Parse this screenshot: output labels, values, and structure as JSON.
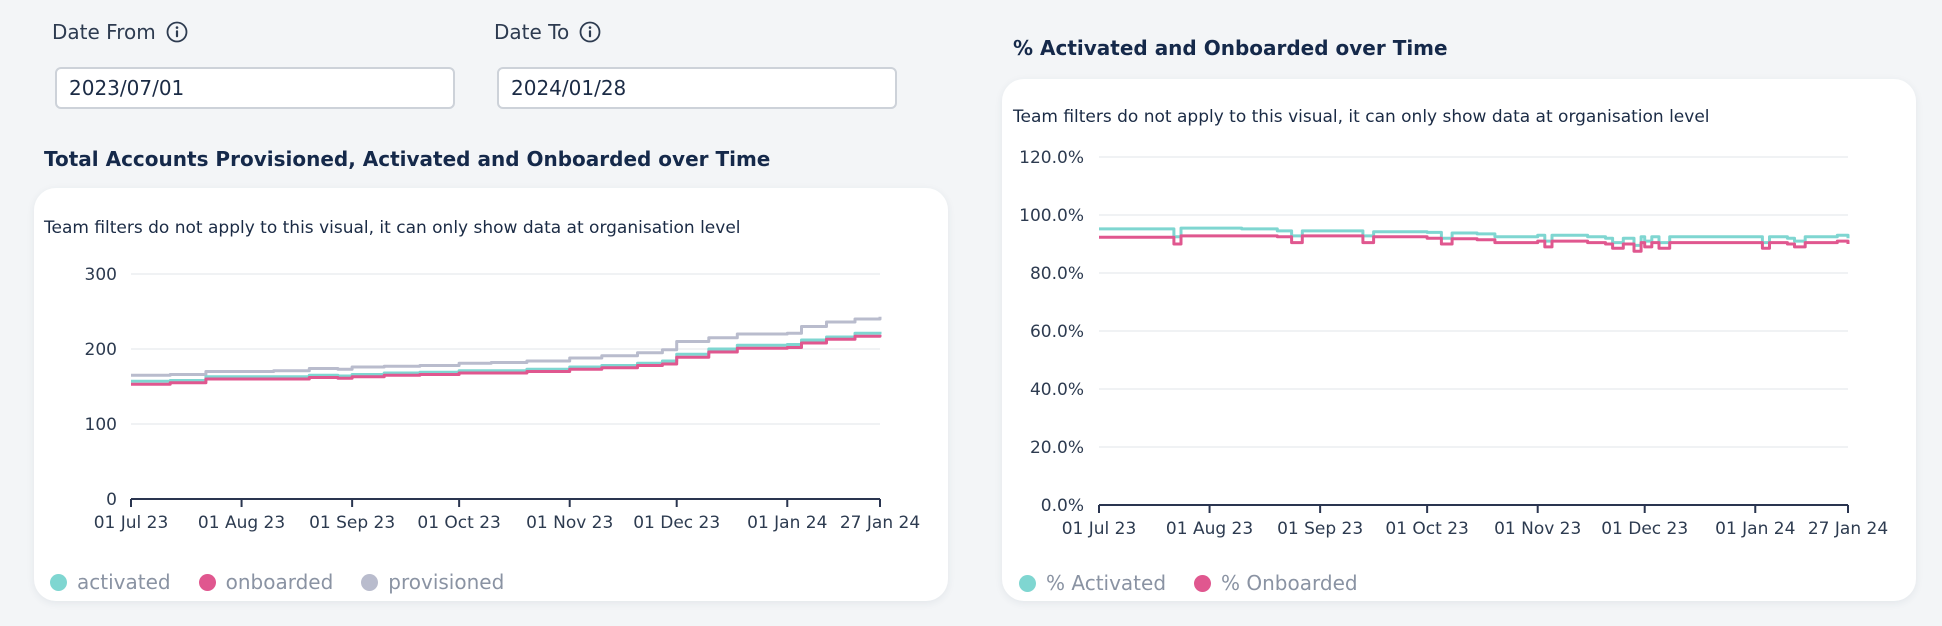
{
  "filters": {
    "date_from": {
      "label": "Date From",
      "value": "2023/07/01"
    },
    "date_to": {
      "label": "Date To",
      "value": "2024/01/28"
    }
  },
  "colors": {
    "activated": "#7fd6d1",
    "onboarded": "#e0578f",
    "provisioned": "#b9bccd",
    "axis": "#2a3550",
    "grid": "#e2e5ea"
  },
  "chart_data": [
    {
      "type": "line",
      "title": "Total Accounts Provisioned, Activated and Onboarded over Time",
      "note": "Team filters do not apply to this visual, it can only show data at organisation level",
      "x_domain": [
        "2023-07-01",
        "2024-01-27"
      ],
      "x_ticks": [
        {
          "date": "2023-07-01",
          "label": "01 Jul 23"
        },
        {
          "date": "2023-08-01",
          "label": "01 Aug 23"
        },
        {
          "date": "2023-09-01",
          "label": "01 Sep 23"
        },
        {
          "date": "2023-10-01",
          "label": "01 Oct 23"
        },
        {
          "date": "2023-11-01",
          "label": "01 Nov 23"
        },
        {
          "date": "2023-12-01",
          "label": "01 Dec 23"
        },
        {
          "date": "2024-01-01",
          "label": "01 Jan 24"
        },
        {
          "date": "2024-01-27",
          "label": "27 Jan 24"
        }
      ],
      "y_ticks": [
        {
          "v": 0,
          "label": "0"
        },
        {
          "v": 100,
          "label": "100"
        },
        {
          "v": 200,
          "label": "200"
        },
        {
          "v": 300,
          "label": "300"
        }
      ],
      "ylim": [
        0,
        300
      ],
      "grid": true,
      "legend": "bottom-left",
      "series": [
        {
          "name": "provisioned",
          "color": "#b9bccd",
          "points": [
            [
              "2023-07-01",
              165
            ],
            [
              "2023-07-12",
              166
            ],
            [
              "2023-07-22",
              170
            ],
            [
              "2023-08-10",
              171
            ],
            [
              "2023-08-20",
              174
            ],
            [
              "2023-08-28",
              173
            ],
            [
              "2023-09-01",
              176
            ],
            [
              "2023-09-10",
              177
            ],
            [
              "2023-09-20",
              178
            ],
            [
              "2023-10-01",
              181
            ],
            [
              "2023-10-10",
              182
            ],
            [
              "2023-10-20",
              184
            ],
            [
              "2023-11-01",
              188
            ],
            [
              "2023-11-10",
              191
            ],
            [
              "2023-11-20",
              195
            ],
            [
              "2023-11-27",
              199
            ],
            [
              "2023-12-01",
              210
            ],
            [
              "2023-12-10",
              215
            ],
            [
              "2023-12-18",
              220
            ],
            [
              "2024-01-01",
              221
            ],
            [
              "2024-01-05",
              230
            ],
            [
              "2024-01-12",
              236
            ],
            [
              "2024-01-20",
              240
            ],
            [
              "2024-01-27",
              243
            ]
          ]
        },
        {
          "name": "activated",
          "color": "#7fd6d1",
          "points": [
            [
              "2023-07-01",
              157
            ],
            [
              "2023-07-12",
              158
            ],
            [
              "2023-07-22",
              163
            ],
            [
              "2023-08-10",
              163
            ],
            [
              "2023-08-20",
              165
            ],
            [
              "2023-08-28",
              164
            ],
            [
              "2023-09-01",
              166
            ],
            [
              "2023-09-10",
              168
            ],
            [
              "2023-09-20",
              169
            ],
            [
              "2023-10-01",
              171
            ],
            [
              "2023-10-10",
              171
            ],
            [
              "2023-10-20",
              173
            ],
            [
              "2023-11-01",
              176
            ],
            [
              "2023-11-10",
              178
            ],
            [
              "2023-11-20",
              181
            ],
            [
              "2023-11-27",
              184
            ],
            [
              "2023-12-01",
              193
            ],
            [
              "2023-12-10",
              200
            ],
            [
              "2023-12-18",
              205
            ],
            [
              "2024-01-01",
              206
            ],
            [
              "2024-01-05",
              212
            ],
            [
              "2024-01-12",
              216
            ],
            [
              "2024-01-20",
              221
            ],
            [
              "2024-01-27",
              223
            ]
          ]
        },
        {
          "name": "onboarded",
          "color": "#e0578f",
          "points": [
            [
              "2023-07-01",
              153
            ],
            [
              "2023-07-12",
              155
            ],
            [
              "2023-07-22",
              160
            ],
            [
              "2023-08-10",
              160
            ],
            [
              "2023-08-20",
              162
            ],
            [
              "2023-08-28",
              161
            ],
            [
              "2023-09-01",
              163
            ],
            [
              "2023-09-10",
              165
            ],
            [
              "2023-09-20",
              166
            ],
            [
              "2023-10-01",
              168
            ],
            [
              "2023-10-10",
              168
            ],
            [
              "2023-10-20",
              170
            ],
            [
              "2023-11-01",
              173
            ],
            [
              "2023-11-10",
              175
            ],
            [
              "2023-11-20",
              178
            ],
            [
              "2023-11-27",
              180
            ],
            [
              "2023-12-01",
              189
            ],
            [
              "2023-12-10",
              196
            ],
            [
              "2023-12-18",
              201
            ],
            [
              "2024-01-01",
              202
            ],
            [
              "2024-01-05",
              208
            ],
            [
              "2024-01-12",
              213
            ],
            [
              "2024-01-20",
              217
            ],
            [
              "2024-01-27",
              219
            ]
          ]
        }
      ]
    },
    {
      "type": "line",
      "title": "% Activated and Onboarded over Time",
      "note": "Team filters do not apply to this visual, it can only show data at organisation level",
      "x_domain": [
        "2023-07-01",
        "2024-01-27"
      ],
      "x_ticks": [
        {
          "date": "2023-07-01",
          "label": "01 Jul 23"
        },
        {
          "date": "2023-08-01",
          "label": "01 Aug 23"
        },
        {
          "date": "2023-09-01",
          "label": "01 Sep 23"
        },
        {
          "date": "2023-10-01",
          "label": "01 Oct 23"
        },
        {
          "date": "2023-11-01",
          "label": "01 Nov 23"
        },
        {
          "date": "2023-12-01",
          "label": "01 Dec 23"
        },
        {
          "date": "2024-01-01",
          "label": "01 Jan 24"
        },
        {
          "date": "2024-01-27",
          "label": "27 Jan 24"
        }
      ],
      "y_ticks": [
        {
          "v": 0,
          "label": "0.0%"
        },
        {
          "v": 20,
          "label": "20.0%"
        },
        {
          "v": 40,
          "label": "40.0%"
        },
        {
          "v": 60,
          "label": "60.0%"
        },
        {
          "v": 80,
          "label": "80.0%"
        },
        {
          "v": 100,
          "label": "100.0%"
        },
        {
          "v": 120,
          "label": "120.0%"
        }
      ],
      "ylim": [
        0,
        120
      ],
      "grid": true,
      "legend": "bottom-left",
      "series": [
        {
          "name": "% Activated",
          "color": "#7fd6d1",
          "points": [
            [
              "2023-07-01",
              95.2
            ],
            [
              "2023-07-20",
              95.2
            ],
            [
              "2023-07-22",
              92.5
            ],
            [
              "2023-07-24",
              95.5
            ],
            [
              "2023-08-10",
              95.2
            ],
            [
              "2023-08-20",
              94.5
            ],
            [
              "2023-08-24",
              92.8
            ],
            [
              "2023-08-27",
              94.5
            ],
            [
              "2023-09-10",
              94.5
            ],
            [
              "2023-09-13",
              92.8
            ],
            [
              "2023-09-16",
              94.2
            ],
            [
              "2023-10-01",
              94.0
            ],
            [
              "2023-10-05",
              92.0
            ],
            [
              "2023-10-08",
              93.8
            ],
            [
              "2023-10-15",
              93.5
            ],
            [
              "2023-10-20",
              92.5
            ],
            [
              "2023-11-01",
              93.0
            ],
            [
              "2023-11-03",
              91.0
            ],
            [
              "2023-11-05",
              93.0
            ],
            [
              "2023-11-15",
              92.5
            ],
            [
              "2023-11-20",
              92.0
            ],
            [
              "2023-11-22",
              90.5
            ],
            [
              "2023-11-25",
              92.0
            ],
            [
              "2023-11-28",
              89.5
            ],
            [
              "2023-11-30",
              92.5
            ],
            [
              "2023-12-01",
              91.0
            ],
            [
              "2023-12-03",
              92.5
            ],
            [
              "2023-12-05",
              90.5
            ],
            [
              "2023-12-08",
              92.5
            ],
            [
              "2023-12-18",
              92.5
            ],
            [
              "2024-01-01",
              92.5
            ],
            [
              "2024-01-03",
              90.5
            ],
            [
              "2024-01-05",
              92.5
            ],
            [
              "2024-01-10",
              92.0
            ],
            [
              "2024-01-12",
              91.0
            ],
            [
              "2024-01-15",
              92.5
            ],
            [
              "2024-01-24",
              93.0
            ],
            [
              "2024-01-27",
              92.0
            ]
          ]
        },
        {
          "name": "% Onboarded",
          "color": "#e0578f",
          "points": [
            [
              "2023-07-01",
              92.3
            ],
            [
              "2023-07-20",
              92.3
            ],
            [
              "2023-07-22",
              90.0
            ],
            [
              "2023-07-24",
              92.8
            ],
            [
              "2023-08-10",
              92.8
            ],
            [
              "2023-08-20",
              92.5
            ],
            [
              "2023-08-24",
              90.5
            ],
            [
              "2023-08-27",
              92.8
            ],
            [
              "2023-09-10",
              92.8
            ],
            [
              "2023-09-13",
              90.5
            ],
            [
              "2023-09-16",
              92.5
            ],
            [
              "2023-10-01",
              92.0
            ],
            [
              "2023-10-05",
              90.0
            ],
            [
              "2023-10-08",
              91.8
            ],
            [
              "2023-10-15",
              91.5
            ],
            [
              "2023-10-20",
              90.5
            ],
            [
              "2023-11-01",
              91.0
            ],
            [
              "2023-11-03",
              89.0
            ],
            [
              "2023-11-05",
              91.0
            ],
            [
              "2023-11-15",
              90.5
            ],
            [
              "2023-11-20",
              90.0
            ],
            [
              "2023-11-22",
              88.5
            ],
            [
              "2023-11-25",
              90.0
            ],
            [
              "2023-11-28",
              87.5
            ],
            [
              "2023-11-30",
              90.5
            ],
            [
              "2023-12-01",
              89.0
            ],
            [
              "2023-12-03",
              90.5
            ],
            [
              "2023-12-05",
              88.5
            ],
            [
              "2023-12-08",
              90.5
            ],
            [
              "2023-12-18",
              90.5
            ],
            [
              "2024-01-01",
              90.5
            ],
            [
              "2024-01-03",
              88.5
            ],
            [
              "2024-01-05",
              90.5
            ],
            [
              "2024-01-10",
              90.0
            ],
            [
              "2024-01-12",
              89.0
            ],
            [
              "2024-01-15",
              90.5
            ],
            [
              "2024-01-24",
              91.0
            ],
            [
              "2024-01-27",
              90.0
            ]
          ]
        }
      ]
    }
  ]
}
